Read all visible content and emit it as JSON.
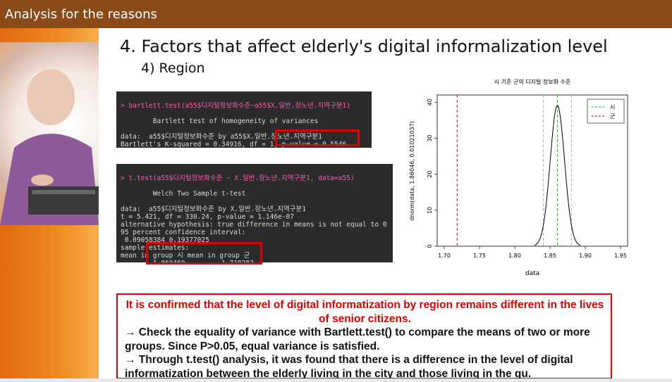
{
  "header": {
    "title": "Analysis for the reasons"
  },
  "slide": {
    "heading": "4. Factors that affect elderly's digital informalization level",
    "subheading": "4) Region"
  },
  "console1": {
    "lines": [
      "> bartlett.test(a55$디지털정보화수준~a55$X.일반.장노년.지역구분1)",
      "",
      "        Bartlett test of homogeneity of variances",
      "",
      "data:  a55$디지털정보화수준 by a55$X.일반.장노년.지역구분1",
      "Bartlett's K-squared = 0.34916, df = 1, p-value = 0.5546"
    ]
  },
  "console2": {
    "lines": [
      "> t.test(a55$디지털정보화수준 ~ X.일반.장노년.지역구분1, data=a55)",
      "",
      "        Welch Two Sample t-test",
      "",
      "data:  a55$디지털정보화수준 by X.일반.장노년.지역구분1",
      "t = 5.421, df = 330.24, p-value = 1.146e-07",
      "alternative hypothesis: true difference in means is not equal to 0",
      "95 percent confidence interval:",
      " 0.09058384 0.19377025",
      "sample estimates:",
      "mean in group 시 mean in group 군",
      "        1.860460         1.718283"
    ]
  },
  "chart_data": {
    "type": "line",
    "title": "시 기준 군의 디지털 정보화 수준",
    "xlabel": "data",
    "ylabel": "dnorm(data, 1.86046, 0.01021037)",
    "xlim": [
      1.69,
      1.96
    ],
    "ylim": [
      0,
      42
    ],
    "xticks": [
      "1.70",
      "1.75",
      "1.80",
      "1.85",
      "1.90",
      "1.95"
    ],
    "yticks": [
      "0",
      "10",
      "20",
      "30",
      "40"
    ],
    "mean": 1.86046,
    "sd": 0.01021037,
    "vlines": [
      {
        "name": "시",
        "x": 1.86046,
        "color": "#00cc00",
        "dash": "dashed"
      },
      {
        "name": "군",
        "x": 1.718283,
        "color": "#cc0000",
        "dash": "dashed"
      },
      {
        "name": "",
        "x": 1.8405,
        "color": "#aaaaff",
        "dash": "dashed"
      },
      {
        "name": "",
        "x": 1.8804,
        "color": "#aaaaff",
        "dash": "dashed"
      }
    ],
    "legend": [
      "시",
      "군"
    ],
    "legend_position": "top-right",
    "grid": false
  },
  "note": {
    "red": "It is confirmed that the level of digital informatization by region remains different in the lives of senior citizens.",
    "line1": "→ Check the equality of variance with Bartlett.test() to compare the means of two or more groups. Since P>0.05, equal variance is satisfied.",
    "line2": "→ Through t.test() analysis, it was found that there is a difference in the level of digital informatization between the elderly living in the city and those living in the gu."
  },
  "colors": {
    "header": "#8a4a17",
    "sidebar": "#f08a22",
    "highlight": "#e00000",
    "console_bg": "#2b2b2b",
    "console_cmd": "#ff5db1"
  }
}
